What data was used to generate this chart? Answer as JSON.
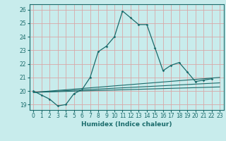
{
  "xlabel": "Humidex (Indice chaleur)",
  "background_color": "#c8ecec",
  "grid_color": "#d8a8a8",
  "line_color": "#1a6b6b",
  "xlim": [
    -0.5,
    23.5
  ],
  "ylim": [
    18.6,
    26.4
  ],
  "xticks": [
    0,
    1,
    2,
    3,
    4,
    5,
    6,
    7,
    8,
    9,
    10,
    11,
    12,
    13,
    14,
    15,
    16,
    17,
    18,
    19,
    20,
    21,
    22,
    23
  ],
  "yticks": [
    19,
    20,
    21,
    22,
    23,
    24,
    25,
    26
  ],
  "main_x": [
    0,
    1,
    2,
    3,
    4,
    5,
    6,
    7,
    8,
    9,
    10,
    11,
    12,
    13,
    14,
    15,
    16,
    17,
    18,
    19,
    20,
    21,
    22
  ],
  "main_y": [
    20.0,
    19.7,
    19.4,
    18.9,
    19.0,
    19.8,
    20.1,
    21.0,
    22.9,
    23.3,
    24.0,
    25.9,
    25.4,
    24.9,
    24.9,
    23.2,
    21.5,
    21.9,
    22.1,
    21.4,
    20.7,
    20.8,
    20.9
  ],
  "trend_lines": [
    {
      "x0": 0,
      "y0": 19.9,
      "x1": 23,
      "y1": 21.0
    },
    {
      "x0": 0,
      "y0": 19.9,
      "x1": 23,
      "y1": 20.6
    },
    {
      "x0": 0,
      "y0": 19.9,
      "x1": 23,
      "y1": 20.3
    }
  ],
  "tick_fontsize": 5.5,
  "xlabel_fontsize": 6.5
}
